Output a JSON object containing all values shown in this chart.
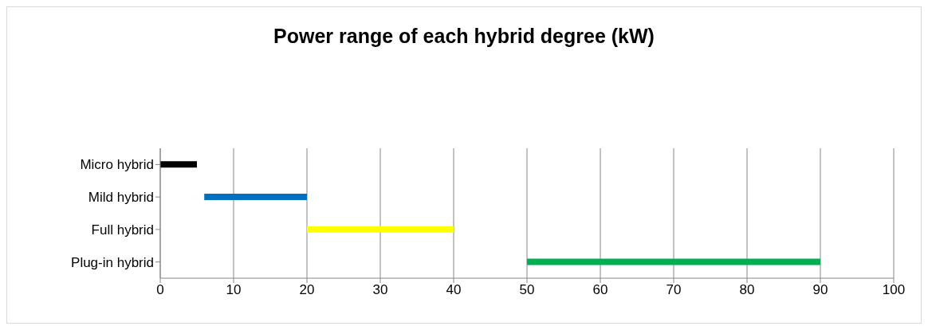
{
  "chart_data": {
    "type": "bar",
    "orientation": "horizontal",
    "title": "Power range of each hybrid degree (kW)",
    "categories": [
      "Micro hybrid",
      "Mild hybrid",
      "Full hybrid",
      "Plug-in hybrid"
    ],
    "base": [
      0,
      6,
      20,
      50
    ],
    "values": [
      5,
      14,
      20,
      40
    ],
    "colors": [
      "#000000",
      "#0070c0",
      "#ffff00",
      "#00b050"
    ],
    "xlim": [
      0,
      100
    ],
    "xticks": [
      0,
      10,
      20,
      30,
      40,
      50,
      60,
      70,
      80,
      90,
      100
    ],
    "grid": "x",
    "legend": false
  }
}
